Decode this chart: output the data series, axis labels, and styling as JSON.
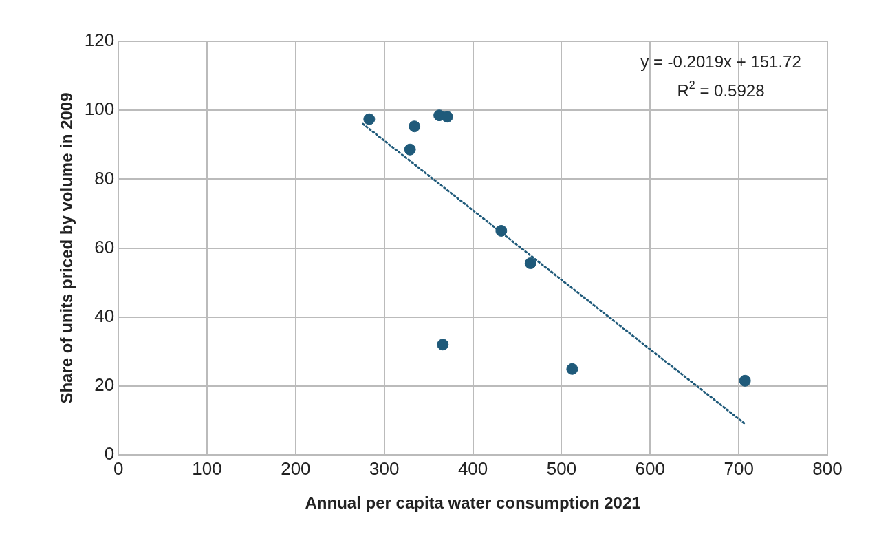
{
  "chart_data": {
    "type": "scatter",
    "xlabel": "Annual per capita water consumption 2021",
    "ylabel": "Share of units priced by volume in 2009",
    "xlim": [
      0,
      800
    ],
    "xticks": [
      0,
      100,
      200,
      300,
      400,
      500,
      600,
      700,
      800
    ],
    "ylim": [
      0,
      120
    ],
    "yticks": [
      0,
      20,
      40,
      60,
      80,
      100,
      120
    ],
    "grid": true,
    "legend": false,
    "series": [
      {
        "type": "scatter",
        "color": "#1f5a7a",
        "marker": "circle",
        "x": [
          283,
          329,
          334,
          362,
          371,
          366,
          432,
          465,
          512,
          707
        ],
        "values": [
          97.4,
          88.6,
          95.3,
          98.5,
          98.1,
          32.0,
          65.0,
          55.6,
          24.9,
          21.5
        ]
      },
      {
        "type": "line",
        "color": "#1f5a7a",
        "marker": "none",
        "line_style": "dotted",
        "x": [
          276,
          707
        ],
        "values": [
          96.0,
          9.0
        ]
      }
    ],
    "annotations": [
      "y = -0.2019x + 151.72",
      "R$^{2}$ = 0.5928"
    ]
  }
}
